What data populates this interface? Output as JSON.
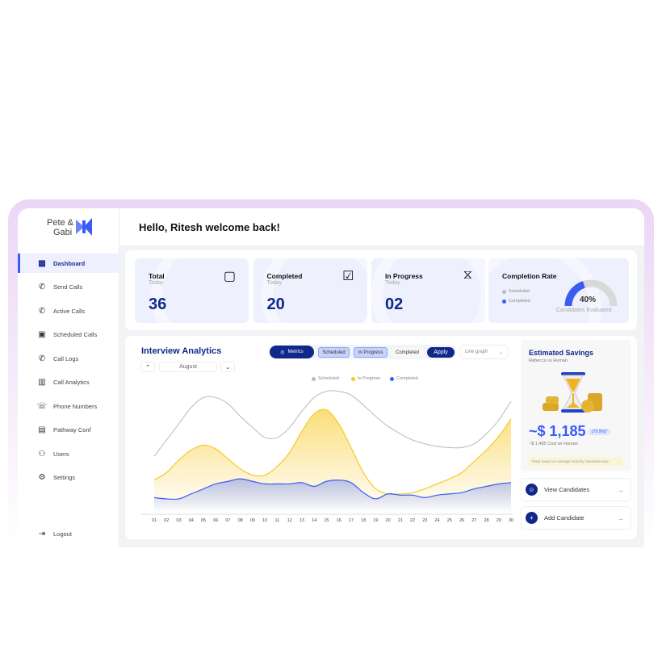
{
  "brand": {
    "line1": "Pete &",
    "line2": "Gabi"
  },
  "sidebar": {
    "items": [
      {
        "label": "Dashboard",
        "icon": "grid-icon",
        "active": true
      },
      {
        "label": "Send Calls",
        "icon": "phone-outgoing-icon"
      },
      {
        "label": "Active Calls",
        "icon": "phone-active-icon"
      },
      {
        "label": "Scheduled Calls",
        "icon": "calendar-icon"
      },
      {
        "label": "Call Logs",
        "icon": "phone-log-icon"
      },
      {
        "label": "Call Analytics",
        "icon": "bar-chart-icon"
      },
      {
        "label": "Phone Numbers",
        "icon": "phone-numbers-icon"
      },
      {
        "label": "Pathway Conf",
        "icon": "document-icon"
      },
      {
        "label": "Users",
        "icon": "users-icon"
      },
      {
        "label": "Settings",
        "icon": "gear-icon"
      }
    ],
    "logout": "Logout"
  },
  "header": {
    "greeting": "Hello, Ritesh welcome back!"
  },
  "stats": [
    {
      "title": "Total",
      "sub": "Today",
      "value": "36",
      "icon": "note-icon"
    },
    {
      "title": "Completed",
      "sub": "Today",
      "value": "20",
      "icon": "check-square-icon"
    },
    {
      "title": "In Progress",
      "sub": "Today",
      "value": "02",
      "icon": "hourglass-icon"
    }
  ],
  "completion": {
    "title": "Completion Rate",
    "legend": [
      "Scheduled",
      "Completed"
    ],
    "percent_label": "40%",
    "percent": 40,
    "caption": "Candidates Evaluated"
  },
  "analytics": {
    "title": "Interview Analytics",
    "month": "August",
    "metrics": "Metrics",
    "filters": [
      "Scheduled",
      "In Progress",
      "Completed"
    ],
    "apply": "Apply",
    "graph_type": "Line graph"
  },
  "savings": {
    "title": "Estimated Savings",
    "sub": "Rebecca vs Human",
    "amount": "~$ 1,185",
    "pct": "(79.9%)*",
    "human": "~$ 1,485 Cost w/ Human",
    "note": "*Data based on average industry rates/interview"
  },
  "actions": [
    {
      "label": "View Candidates",
      "icon": "users-icon"
    },
    {
      "label": "Add Candidate",
      "icon": "add-user-icon"
    }
  ],
  "colors": {
    "scheduled": "#c4c4c4",
    "in_progress": "#f7c925",
    "completed": "#3a5cf5",
    "brand": "#10288a"
  },
  "chart_data": {
    "type": "area",
    "x": [
      "01",
      "02",
      "03",
      "04",
      "05",
      "06",
      "07",
      "08",
      "09",
      "10",
      "11",
      "12",
      "13",
      "14",
      "15",
      "16",
      "17",
      "18",
      "19",
      "20",
      "21",
      "22",
      "23",
      "24",
      "25",
      "26",
      "27",
      "28",
      "29",
      "30"
    ],
    "series": [
      {
        "name": "Scheduled",
        "values": [
          45,
          58,
          71,
          84,
          92,
          92,
          87,
          77,
          68,
          60,
          60,
          68,
          81,
          92,
          97,
          97,
          94,
          86,
          77,
          69,
          63,
          58,
          55,
          53,
          52,
          52,
          55,
          63,
          74,
          89
        ]
      },
      {
        "name": "In Progress",
        "values": [
          26,
          32,
          42,
          50,
          54,
          51,
          43,
          35,
          30,
          30,
          37,
          48,
          65,
          79,
          82,
          71,
          52,
          32,
          19,
          15,
          15,
          16,
          19,
          23,
          27,
          32,
          41,
          50,
          61,
          75
        ]
      },
      {
        "name": "Completed",
        "values": [
          12,
          11,
          11,
          15,
          19,
          23,
          25,
          27,
          25,
          23,
          23,
          23,
          24,
          21,
          25,
          26,
          24,
          16,
          11,
          15,
          14,
          14,
          12,
          14,
          15,
          16,
          19,
          21,
          23,
          24
        ]
      }
    ],
    "ylim": [
      0,
      100
    ],
    "grid": false,
    "legend": "top-center"
  }
}
